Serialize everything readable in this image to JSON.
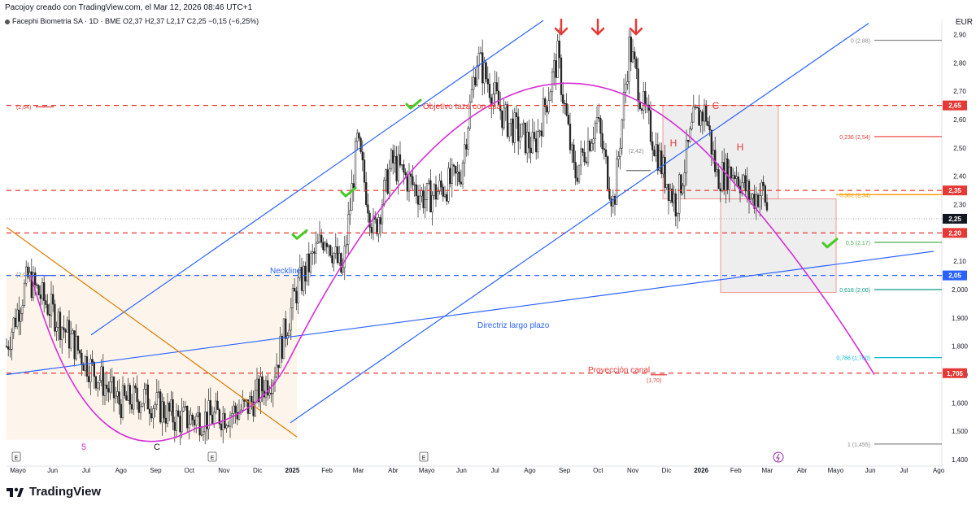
{
  "header": {
    "attribution": "Pacojoy creado con TradingView.com, el Mar 12, 2026 08:46 UTC+1",
    "legend": "Facephi Biometria SA · 1D · BME  O2,37  H2,37  L2,17  C2,25  −0,15 (−6,25%)",
    "currency": "EUR"
  },
  "footer": {
    "brand": "TradingView"
  },
  "colors": {
    "red_dash": "#e53935",
    "blue": "#2962ff",
    "magenta": "#d52fd5",
    "orange": "#e07b00",
    "green_check": "#44cc22",
    "grey_box": "#d6d6d6"
  },
  "chart_data": {
    "type": "candlestick",
    "title": "",
    "xlabel": "",
    "ylabel": "EUR",
    "ylim": [
      1.4,
      2.95
    ],
    "x_ticks": [
      "Mayo",
      "Jun",
      "Jul",
      "Ago",
      "Sep",
      "Oct",
      "Nov",
      "Dic",
      "2025",
      "Feb",
      "Mar",
      "Abr",
      "Mayo",
      "Jun",
      "Jul",
      "Ago",
      "Sep",
      "Oct",
      "Nov",
      "Dic",
      "2026",
      "Feb",
      "Mar",
      "Abr",
      "Mayo",
      "Jun",
      "Jul",
      "Ago"
    ],
    "y_ticks": [
      "2,90",
      "2,80",
      "2,70",
      "2,60",
      "2,50",
      "2,40",
      "2,30",
      "2,20",
      "2,10",
      "2,000",
      "1,900",
      "1,800",
      "1,700",
      "1,600",
      "1,500",
      "1,400"
    ],
    "price_path": [
      [
        "2024-05-01",
        1.8
      ],
      [
        "2024-05-20",
        2.04
      ],
      [
        "2024-06-15",
        1.9
      ],
      [
        "2024-07-10",
        1.75
      ],
      [
        "2024-08-10",
        1.6
      ],
      [
        "2024-09-01",
        1.62
      ],
      [
        "2024-10-01",
        1.54
      ],
      [
        "2024-11-01",
        1.55
      ],
      [
        "2024-12-01",
        1.58
      ],
      [
        "2024-12-25",
        1.7
      ],
      [
        "2025-01-15",
        2.0
      ],
      [
        "2025-02-10",
        2.2
      ],
      [
        "2025-02-25",
        2.05
      ],
      [
        "2025-03-10",
        2.52
      ],
      [
        "2025-03-25",
        2.2
      ],
      [
        "2025-04-10",
        2.45
      ],
      [
        "2025-05-10",
        2.32
      ],
      [
        "2025-06-10",
        2.4
      ],
      [
        "2025-06-25",
        2.82
      ],
      [
        "2025-07-20",
        2.6
      ],
      [
        "2025-08-15",
        2.5
      ],
      [
        "2025-09-05",
        2.82
      ],
      [
        "2025-09-20",
        2.4
      ],
      [
        "2025-10-10",
        2.6
      ],
      [
        "2025-10-25",
        2.3
      ],
      [
        "2025-11-08",
        2.86
      ],
      [
        "2025-11-20",
        2.65
      ],
      [
        "2025-12-08",
        2.42
      ],
      [
        "2025-12-20",
        2.3
      ],
      [
        "2026-01-05",
        2.6
      ],
      [
        "2026-01-15",
        2.63
      ],
      [
        "2026-01-25",
        2.4
      ],
      [
        "2026-02-10",
        2.42
      ],
      [
        "2026-02-25",
        2.32
      ],
      [
        "2026-03-08",
        2.35
      ],
      [
        "2026-03-12",
        2.25
      ]
    ],
    "levels": [
      {
        "price": 2.65,
        "label": "2,65",
        "style": "red-dash"
      },
      {
        "price": 2.35,
        "label": "2,35",
        "style": "red-dash"
      },
      {
        "price": 2.2,
        "label": "2,20",
        "style": "red-dash"
      },
      {
        "price": 2.05,
        "label": "2,05",
        "style": "blue-dash"
      },
      {
        "price": 1.705,
        "label": "1,705",
        "style": "red-dash"
      }
    ],
    "last_price": {
      "price": 2.25,
      "label": "2,25"
    },
    "fibonacci": [
      {
        "label": "0 (2,88)",
        "price": 2.88,
        "color": "#888888"
      },
      {
        "label": "0,236 (2,54)",
        "price": 2.54,
        "color": "#e53935"
      },
      {
        "label": "0,382 (2,34)",
        "price": 2.335,
        "color": "#ff9800"
      },
      {
        "label": "0,5 (2,17)",
        "price": 2.167,
        "color": "#4caf50"
      },
      {
        "label": "0,618 (2,00)",
        "price": 2.0,
        "color": "#089981"
      },
      {
        "label": "0,786 (1,760)",
        "price": 1.76,
        "color": "#00bcd4"
      },
      {
        "label": "1 (1,455)",
        "price": 1.455,
        "color": "#888888"
      }
    ],
    "annotations": {
      "target_text": "Objetivo taza con asa",
      "neckline": "Neckline",
      "long_trend": "Directriz largo plazo",
      "projection": "Proyección canal",
      "left_level": "(2,64)",
      "left_level2": "(2,05)",
      "left_level3": "(2,20)",
      "mid_level": "(2,42)",
      "proj_level": "(1,70)",
      "wave5": "5",
      "waveC": "C",
      "pattern_H1": "H",
      "pattern_C": "C",
      "pattern_H2": "H",
      "event_E": "E"
    }
  }
}
